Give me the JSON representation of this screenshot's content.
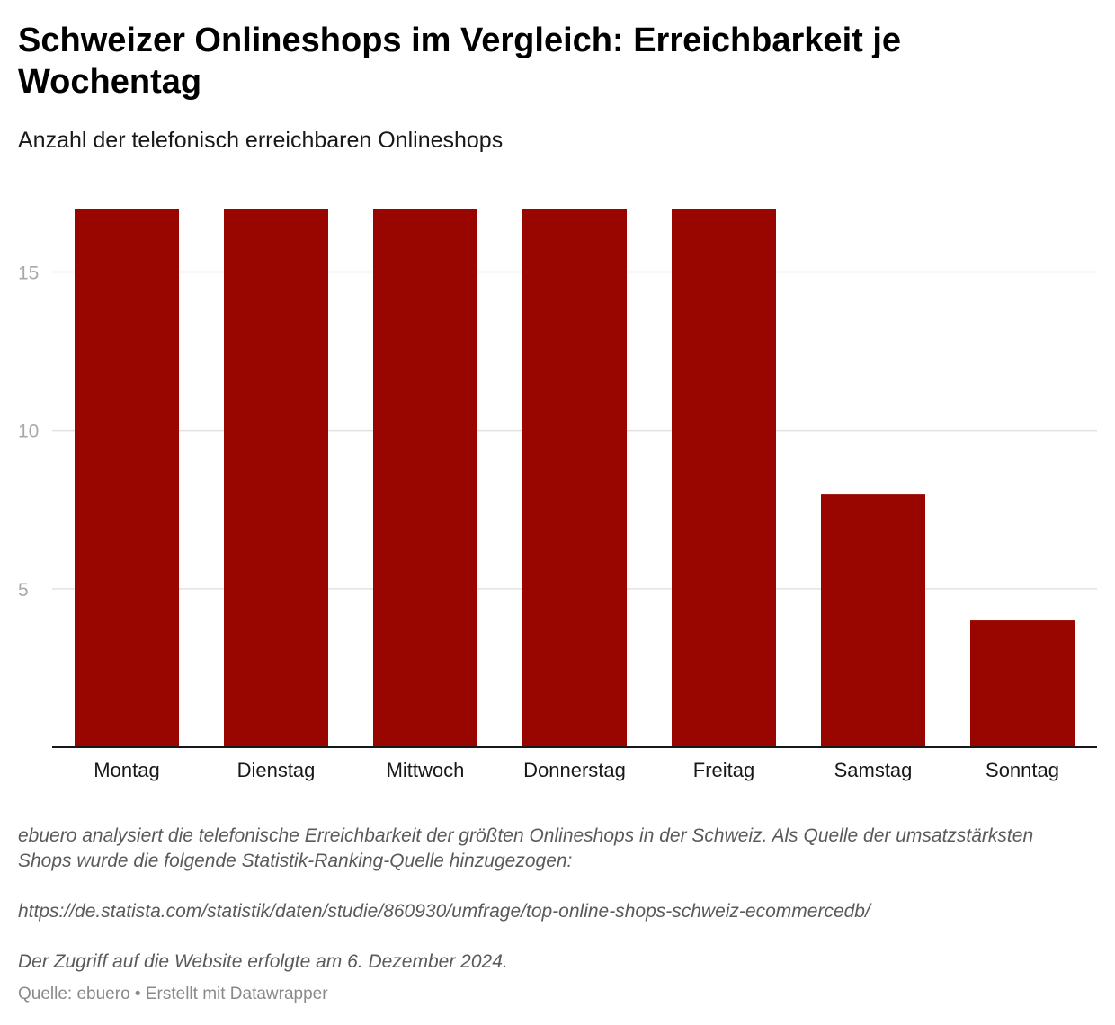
{
  "header": {
    "title": "Schweizer Onlineshops im Vergleich: Erreichbarkeit je Wochentag",
    "subtitle": "Anzahl der telefonisch erreichbaren Onlineshops"
  },
  "notes": {
    "line1": "ebuero analysiert die telefonische Erreichbarkeit der größten Onlineshops in der Schweiz. Als Quelle der umsatzstärksten Shops wurde die folgende Statistik-Ranking-Quelle hinzugezogen:",
    "url": "https://de.statista.com/statistik/daten/studie/860930/umfrage/top-online-shops-schweiz-ecommercedb/",
    "access": "Der Zugriff auf die Website erfolgte am 6. Dezember 2024."
  },
  "footer": {
    "source": "Quelle: ebuero • Erstellt mit Datawrapper"
  },
  "colors": {
    "bar": "#990600",
    "grid": "#e2e2e2",
    "tick_label": "#a8a8a8",
    "axis": "#181818"
  },
  "chart_data": {
    "type": "bar",
    "categories": [
      "Montag",
      "Dienstag",
      "Mittwoch",
      "Donnerstag",
      "Freitag",
      "Samstag",
      "Sonntag"
    ],
    "values": [
      17,
      17,
      17,
      17,
      17,
      8,
      4
    ],
    "yticks": [
      5,
      10,
      15
    ],
    "ylim": [
      0,
      17
    ],
    "grid": true,
    "legend": "none"
  }
}
